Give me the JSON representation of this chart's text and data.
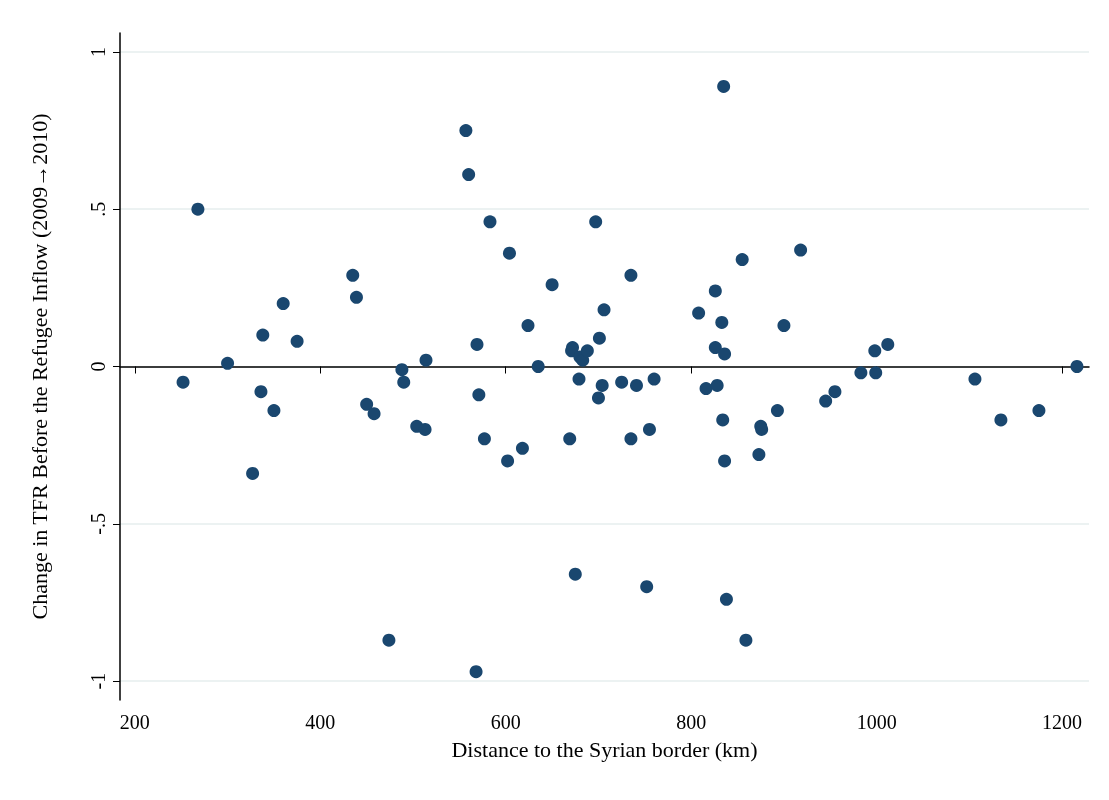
{
  "chart_data": {
    "type": "scatter",
    "xlabel": "Distance to the Syrian border (km)",
    "ylabel": "Change in TFR Before the Refugee Inflow (2009→2010)",
    "x": [
      252,
      268,
      300,
      327,
      336,
      338,
      350,
      360,
      375,
      435,
      439,
      450,
      458,
      474,
      488,
      490,
      504,
      513,
      514,
      557,
      560,
      569,
      571,
      568,
      577,
      583,
      602,
      604,
      618,
      624,
      635,
      650,
      669,
      671,
      672,
      675,
      679,
      680,
      683,
      688,
      697,
      700,
      701,
      704,
      706,
      725,
      735,
      735,
      741,
      752,
      755,
      760,
      808,
      816,
      826,
      826,
      828,
      833,
      834,
      835,
      836,
      836,
      838,
      855,
      859,
      873,
      875,
      876,
      893,
      900,
      918,
      945,
      955,
      983,
      998,
      999,
      1012,
      1106,
      1134,
      1175,
      1216
    ],
    "values": [
      -0.05,
      0.5,
      0.01,
      -0.34,
      -0.08,
      0.1,
      -0.14,
      0.2,
      0.08,
      0.29,
      0.22,
      -0.12,
      -0.15,
      -0.87,
      -0.01,
      -0.05,
      -0.19,
      -0.2,
      0.02,
      0.75,
      0.61,
      0.07,
      -0.09,
      -0.97,
      -0.23,
      0.46,
      -0.3,
      0.36,
      -0.26,
      0.13,
      0.0,
      0.26,
      -0.23,
      0.05,
      0.06,
      -0.66,
      -0.04,
      0.03,
      0.02,
      0.05,
      0.46,
      -0.1,
      0.09,
      -0.06,
      0.18,
      -0.05,
      0.29,
      -0.23,
      -0.06,
      -0.7,
      -0.2,
      -0.04,
      0.17,
      -0.07,
      0.24,
      0.06,
      -0.06,
      0.14,
      -0.17,
      0.89,
      -0.3,
      0.04,
      -0.74,
      0.34,
      -0.87,
      -0.28,
      -0.19,
      -0.2,
      -0.14,
      0.13,
      0.37,
      -0.11,
      -0.08,
      -0.02,
      0.05,
      -0.02,
      0.07,
      -0.04,
      -0.17,
      -0.14,
      0.0
    ],
    "color": "#1a476f",
    "marker": "circle",
    "grid": "y",
    "xlim": [
      184,
      1229
    ],
    "xticks": [
      200,
      400,
      600,
      800,
      1000,
      1200
    ],
    "ylim": [
      -1.06,
      1.06
    ],
    "yticks": [
      {
        "value": -1,
        "label": "-1"
      },
      {
        "value": -0.5,
        "label": "-.5"
      },
      {
        "value": 0,
        "label": "0"
      },
      {
        "value": 0.5,
        "label": ".5"
      },
      {
        "value": 1,
        "label": "1"
      }
    ]
  }
}
